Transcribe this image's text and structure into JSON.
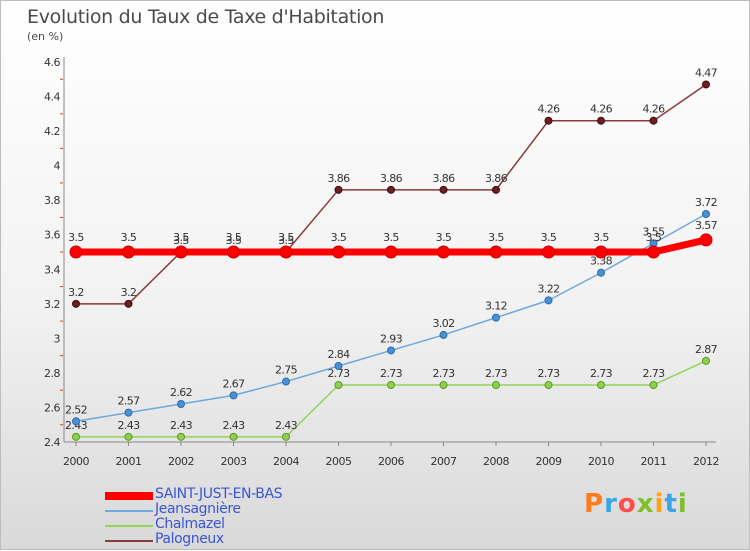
{
  "title": "Evolution du Taux de Taxe d'Habitation",
  "subtitle": "(en %)",
  "logo": {
    "text": "Proxiti",
    "colors": [
      "#ff7a1a",
      "#3aa6e8",
      "#ff4d4d",
      "#7fbf2a",
      "#ff9f1a",
      "#3aa6e8",
      "#7fbf2a"
    ]
  },
  "chart_data": {
    "type": "line",
    "title": "Evolution du Taux de Taxe d'Habitation",
    "ylabel": "(en %)",
    "xlabel": "",
    "x": [
      "2000",
      "2001",
      "2002",
      "2003",
      "2004",
      "2005",
      "2006",
      "2007",
      "2008",
      "2009",
      "2010",
      "2011",
      "2012"
    ],
    "ylim": [
      2.4,
      4.6
    ],
    "yticks": [
      "2.4",
      "2.6",
      "2.8",
      "3",
      "3.2",
      "3.4",
      "3.6",
      "3.8",
      "4",
      "4.2",
      "4.4",
      "4.6"
    ],
    "grid": false,
    "legend_position": "bottom-left",
    "series": [
      {
        "name": "SAINT-JUST-EN-BAS",
        "color": "#ff0000",
        "values": [
          3.5,
          3.5,
          3.5,
          3.5,
          3.5,
          3.5,
          3.5,
          3.5,
          3.5,
          3.5,
          3.5,
          3.5,
          3.57
        ],
        "labels": [
          "3.5",
          "3.5",
          "3.5",
          "3.5",
          "3.5",
          "3.5",
          "3.5",
          "3.5",
          "3.5",
          "3.5",
          "3.5",
          "3.5",
          "3.57"
        ]
      },
      {
        "name": "Jeansagnière",
        "color": "#6fa8dc",
        "values": [
          2.52,
          2.57,
          2.62,
          2.67,
          2.75,
          2.84,
          2.93,
          3.02,
          3.12,
          3.22,
          3.38,
          3.55,
          3.72
        ],
        "labels": [
          "2.52",
          "2.57",
          "2.62",
          "2.67",
          "2.75",
          "2.84",
          "2.93",
          "3.02",
          "3.12",
          "3.22",
          "3.38",
          "3.55",
          "3.72"
        ]
      },
      {
        "name": "Chalmazel",
        "color": "#93d35a",
        "values": [
          2.43,
          2.43,
          2.43,
          2.43,
          2.43,
          2.73,
          2.73,
          2.73,
          2.73,
          2.73,
          2.73,
          2.73,
          2.87
        ],
        "labels": [
          "2.43",
          "2.43",
          "2.43",
          "2.43",
          "2.43",
          "2.73",
          "2.73",
          "2.73",
          "2.73",
          "2.73",
          "2.73",
          "2.73",
          "2.87"
        ]
      },
      {
        "name": "Palogneux",
        "color": "#8b3a3a",
        "values": [
          3.2,
          3.2,
          3.5,
          3.5,
          3.5,
          3.86,
          3.86,
          3.86,
          3.86,
          4.26,
          4.26,
          4.26,
          4.47
        ],
        "labels": [
          "3.2",
          "3.2",
          "3.5",
          "3.5",
          "3.5",
          "3.86",
          "3.86",
          "3.86",
          "3.86",
          "4.26",
          "4.26",
          "4.26",
          "4.47"
        ]
      }
    ]
  }
}
